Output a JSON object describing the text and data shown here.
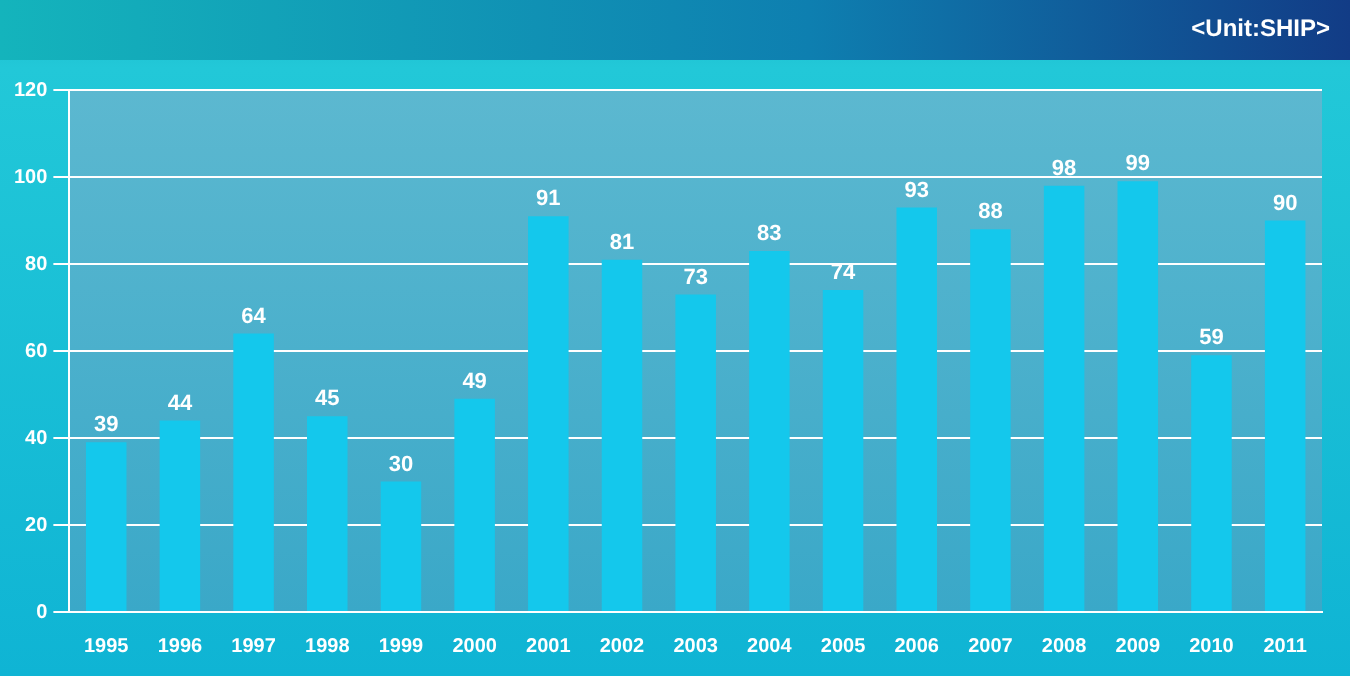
{
  "chart_data": {
    "type": "bar",
    "annotations": [
      "<Unit:SHIP>"
    ],
    "categories": [
      "1995",
      "1996",
      "1997",
      "1998",
      "1999",
      "2000",
      "2001",
      "2002",
      "2003",
      "2004",
      "2005",
      "2006",
      "2007",
      "2008",
      "2009",
      "2010",
      "2011"
    ],
    "values": [
      39,
      44,
      64,
      45,
      30,
      49,
      91,
      81,
      73,
      83,
      74,
      93,
      88,
      98,
      99,
      59,
      90
    ],
    "color": "#14c8ec",
    "ylim": [
      0,
      120
    ],
    "yticks": [
      0,
      20,
      40,
      60,
      80,
      100,
      120
    ],
    "grid": "y",
    "data_labels": true,
    "legend": false
  }
}
